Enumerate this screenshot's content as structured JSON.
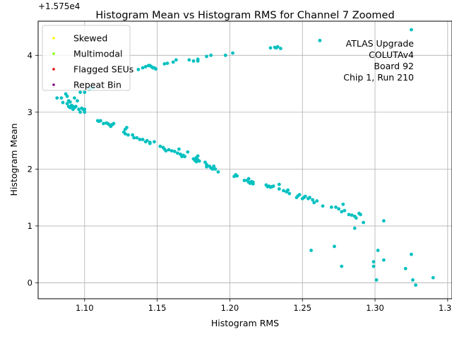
{
  "chart_data": {
    "type": "scatter",
    "title": "Histogram Mean vs Histogram RMS for Channel 7 Zoomed",
    "xlabel": "Histogram RMS",
    "ylabel": "Histogram Mean",
    "y_offset_label": "+1.575e4",
    "xlim": [
      1.068,
      1.353
    ],
    "ylim": [
      -0.28,
      4.6
    ],
    "xticks": [
      1.1,
      1.15,
      1.2,
      1.25,
      1.3,
      1.35
    ],
    "xtick_labels": [
      "1.10",
      "1.15",
      "1.20",
      "1.25",
      "1.30",
      "1.35"
    ],
    "yticks": [
      0,
      1,
      2,
      3,
      4
    ],
    "ytick_labels": [
      "0",
      "1",
      "2",
      "3",
      "4"
    ],
    "grid": true,
    "legend_position": "top-left",
    "legend": [
      {
        "label": "Skewed",
        "color": "#ffff00"
      },
      {
        "label": "Multimodal",
        "color": "#80ff00"
      },
      {
        "label": "Flagged SEUs",
        "color": "#e60000"
      },
      {
        "label": "Repeat Bin",
        "color": "#800080"
      }
    ],
    "annotation": [
      "ATLAS Upgrade",
      "COLUTAv4",
      "Board 92",
      "Chip 1, Run 210"
    ],
    "series_color": "#00c0c0",
    "points": [
      [
        1.081,
        3.25
      ],
      [
        1.084,
        3.25
      ],
      [
        1.085,
        3.17
      ],
      [
        1.087,
        3.32
      ],
      [
        1.088,
        3.28
      ],
      [
        1.088,
        3.15
      ],
      [
        1.089,
        3.2
      ],
      [
        1.089,
        3.1
      ],
      [
        1.09,
        3.18
      ],
      [
        1.09,
        3.08
      ],
      [
        1.091,
        3.12
      ],
      [
        1.092,
        3.05
      ],
      [
        1.092,
        3.1
      ],
      [
        1.093,
        3.25
      ],
      [
        1.093,
        3.08
      ],
      [
        1.094,
        3.1
      ],
      [
        1.095,
        3.2
      ],
      [
        1.096,
        3.05
      ],
      [
        1.097,
        3.35
      ],
      [
        1.097,
        3.0
      ],
      [
        1.098,
        3.07
      ],
      [
        1.099,
        3.05
      ],
      [
        1.1,
        3.35
      ],
      [
        1.1,
        3.0
      ],
      [
        1.1,
        3.05
      ],
      [
        1.103,
        3.4
      ],
      [
        1.104,
        3.42
      ],
      [
        1.106,
        3.43
      ],
      [
        1.109,
        2.85
      ],
      [
        1.11,
        2.84
      ],
      [
        1.111,
        2.85
      ],
      [
        1.113,
        2.8
      ],
      [
        1.115,
        2.81
      ],
      [
        1.116,
        2.8
      ],
      [
        1.117,
        2.78
      ],
      [
        1.118,
        2.75
      ],
      [
        1.119,
        2.78
      ],
      [
        1.12,
        2.8
      ],
      [
        1.127,
        2.65
      ],
      [
        1.128,
        2.7
      ],
      [
        1.128,
        2.62
      ],
      [
        1.129,
        2.73
      ],
      [
        1.13,
        2.6
      ],
      [
        1.133,
        2.6
      ],
      [
        1.134,
        2.55
      ],
      [
        1.136,
        2.55
      ],
      [
        1.138,
        2.52
      ],
      [
        1.14,
        2.52
      ],
      [
        1.142,
        2.48
      ],
      [
        1.143,
        2.5
      ],
      [
        1.145,
        2.45
      ],
      [
        1.145,
        2.47
      ],
      [
        1.148,
        2.48
      ],
      [
        1.137,
        3.75
      ],
      [
        1.14,
        3.78
      ],
      [
        1.142,
        3.8
      ],
      [
        1.144,
        3.82
      ],
      [
        1.145,
        3.82
      ],
      [
        1.146,
        3.8
      ],
      [
        1.147,
        3.78
      ],
      [
        1.148,
        3.78
      ],
      [
        1.149,
        3.76
      ],
      [
        1.155,
        3.85
      ],
      [
        1.157,
        3.86
      ],
      [
        1.161,
        3.88
      ],
      [
        1.163,
        3.92
      ],
      [
        1.172,
        3.92
      ],
      [
        1.175,
        3.9
      ],
      [
        1.178,
        3.93
      ],
      [
        1.178,
        3.9
      ],
      [
        1.184,
        3.98
      ],
      [
        1.187,
        4.0
      ],
      [
        1.197,
        4.0
      ],
      [
        1.202,
        4.04
      ],
      [
        1.152,
        2.4
      ],
      [
        1.154,
        2.38
      ],
      [
        1.155,
        2.35
      ],
      [
        1.156,
        2.32
      ],
      [
        1.158,
        2.34
      ],
      [
        1.16,
        2.32
      ],
      [
        1.162,
        2.31
      ],
      [
        1.164,
        2.28
      ],
      [
        1.165,
        2.35
      ],
      [
        1.166,
        2.26
      ],
      [
        1.167,
        2.22
      ],
      [
        1.168,
        2.24
      ],
      [
        1.169,
        2.22
      ],
      [
        1.171,
        2.3
      ],
      [
        1.175,
        2.18
      ],
      [
        1.176,
        2.15
      ],
      [
        1.177,
        2.2
      ],
      [
        1.177,
        2.13
      ],
      [
        1.178,
        2.16
      ],
      [
        1.178,
        2.23
      ],
      [
        1.179,
        2.14
      ],
      [
        1.183,
        2.12
      ],
      [
        1.184,
        2.08
      ],
      [
        1.184,
        2.04
      ],
      [
        1.186,
        2.05
      ],
      [
        1.187,
        2.02
      ],
      [
        1.188,
        2.0
      ],
      [
        1.189,
        2.05
      ],
      [
        1.19,
        2.0
      ],
      [
        1.192,
        1.95
      ],
      [
        1.203,
        1.87
      ],
      [
        1.204,
        1.9
      ],
      [
        1.205,
        1.88
      ],
      [
        1.21,
        1.8
      ],
      [
        1.212,
        1.8
      ],
      [
        1.213,
        1.83
      ],
      [
        1.213,
        1.77
      ],
      [
        1.214,
        1.75
      ],
      [
        1.215,
        1.78
      ],
      [
        1.216,
        1.77
      ],
      [
        1.216,
        1.74
      ],
      [
        1.225,
        1.72
      ],
      [
        1.226,
        1.69
      ],
      [
        1.227,
        1.7
      ],
      [
        1.228,
        1.68
      ],
      [
        1.229,
        1.69
      ],
      [
        1.23,
        1.7
      ],
      [
        1.234,
        1.65
      ],
      [
        1.234,
        1.73
      ],
      [
        1.237,
        1.62
      ],
      [
        1.239,
        1.6
      ],
      [
        1.24,
        1.63
      ],
      [
        1.241,
        1.57
      ],
      [
        1.246,
        1.5
      ],
      [
        1.247,
        1.53
      ],
      [
        1.248,
        1.55
      ],
      [
        1.25,
        1.48
      ],
      [
        1.251,
        1.5
      ],
      [
        1.252,
        1.52
      ],
      [
        1.254,
        1.48
      ],
      [
        1.255,
        1.5
      ],
      [
        1.257,
        1.46
      ],
      [
        1.258,
        1.41
      ],
      [
        1.26,
        1.44
      ],
      [
        1.264,
        1.35
      ],
      [
        1.27,
        1.33
      ],
      [
        1.273,
        1.33
      ],
      [
        1.275,
        1.3
      ],
      [
        1.277,
        1.25
      ],
      [
        1.278,
        1.38
      ],
      [
        1.279,
        1.27
      ],
      [
        1.282,
        1.2
      ],
      [
        1.284,
        1.19
      ],
      [
        1.286,
        1.17
      ],
      [
        1.287,
        1.14
      ],
      [
        1.289,
        1.22
      ],
      [
        1.29,
        1.2
      ],
      [
        1.292,
        1.06
      ],
      [
        1.286,
        0.96
      ],
      [
        1.306,
        1.09
      ],
      [
        1.228,
        4.13
      ],
      [
        1.231,
        4.14
      ],
      [
        1.232,
        4.13
      ],
      [
        1.233,
        4.15
      ],
      [
        1.235,
        4.12
      ],
      [
        1.262,
        4.26
      ],
      [
        1.325,
        4.45
      ],
      [
        1.256,
        0.57
      ],
      [
        1.272,
        0.64
      ],
      [
        1.277,
        0.29
      ],
      [
        1.299,
        0.37
      ],
      [
        1.299,
        0.29
      ],
      [
        1.301,
        0.05
      ],
      [
        1.302,
        0.57
      ],
      [
        1.306,
        0.4
      ],
      [
        1.321,
        0.25
      ],
      [
        1.325,
        0.5
      ],
      [
        1.326,
        0.05
      ],
      [
        1.328,
        -0.04
      ],
      [
        1.34,
        0.09
      ]
    ]
  }
}
